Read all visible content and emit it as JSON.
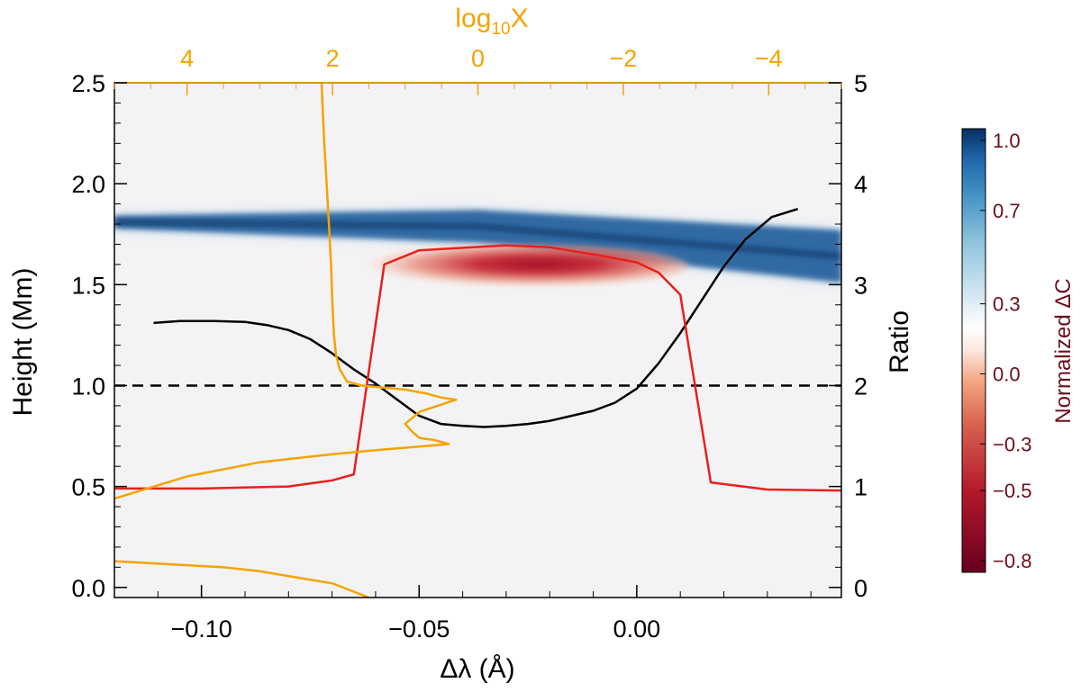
{
  "chart_data": {
    "type": "heatmap",
    "xlabel": "Δλ (Å)",
    "ylabel": "Height (Mm)",
    "y2label": "Ratio",
    "top_axis": {
      "label_main": "log",
      "label_sub": "10",
      "label_end": "X",
      "ticks": [
        "4",
        "2",
        "0",
        "−2",
        "−4"
      ],
      "tick_values": [
        4,
        2,
        0,
        -2,
        -4
      ],
      "range": [
        5.0,
        -5.0
      ]
    },
    "xlim": [
      -0.12,
      0.047
    ],
    "ylim": [
      -0.05,
      2.5
    ],
    "y2lim": [
      -0.1,
      5.0
    ],
    "x_ticks": {
      "values": [
        -0.1,
        -0.05,
        0.0
      ],
      "labels": [
        "−0.10",
        "−0.05",
        "0.00"
      ]
    },
    "y_ticks": {
      "values": [
        0.0,
        0.5,
        1.0,
        1.5,
        2.0,
        2.5
      ],
      "labels": [
        "0.0",
        "0.5",
        "1.0",
        "1.5",
        "2.0",
        "2.5"
      ]
    },
    "y2_ticks": {
      "values": [
        0,
        1,
        2,
        3,
        4,
        5
      ],
      "labels": [
        "0",
        "1",
        "2",
        "3",
        "4",
        "5"
      ]
    },
    "colorbar": {
      "title": "Normalized ΔC",
      "range": [
        -0.85,
        1.05
      ],
      "tick_values": [
        1.0,
        0.7,
        0.3,
        0.0,
        -0.3,
        -0.5,
        -0.8
      ],
      "tick_labels": [
        "1.0",
        "0.7",
        "0.3",
        "0.0",
        "−0.3",
        "−0.5",
        "−0.8"
      ]
    },
    "reference_line": {
      "y": 1.0,
      "style": "dashed",
      "color": "#000000"
    },
    "heatmap_features": {
      "positive_band": {
        "description_value": "Blue band",
        "x_start": -0.12,
        "x_end": 0.047,
        "height_start": 1.81,
        "height_end": 1.64,
        "intensity": 1.0
      },
      "negative_region": {
        "x_range": [
          -0.065,
          0.012
        ],
        "height_range": [
          1.48,
          1.7
        ],
        "peak_x": -0.027,
        "peak_height": 1.62,
        "intensity": -0.85
      }
    },
    "series": [
      {
        "color": "#000000",
        "axis": "ratio",
        "x": [
          -0.111,
          -0.105,
          -0.097,
          -0.09,
          -0.085,
          -0.08,
          -0.075,
          -0.07,
          -0.065,
          -0.06,
          -0.055,
          -0.05,
          -0.045,
          -0.04,
          -0.035,
          -0.03,
          -0.025,
          -0.02,
          -0.015,
          -0.01,
          -0.005,
          0.0,
          0.005,
          0.01,
          0.015,
          0.02,
          0.025,
          0.031,
          0.037
        ],
        "y": [
          2.62,
          2.64,
          2.64,
          2.63,
          2.6,
          2.55,
          2.46,
          2.32,
          2.16,
          2.02,
          1.86,
          1.7,
          1.62,
          1.6,
          1.59,
          1.6,
          1.62,
          1.65,
          1.7,
          1.75,
          1.83,
          1.97,
          2.22,
          2.52,
          2.85,
          3.18,
          3.45,
          3.67,
          3.75
        ]
      },
      {
        "color": "#e8201c",
        "axis": "ratio",
        "x": [
          -0.12,
          -0.1,
          -0.08,
          -0.07,
          -0.065,
          -0.058,
          -0.05,
          -0.03,
          -0.02,
          -0.01,
          0.0,
          0.005,
          0.01,
          0.017,
          0.03,
          0.047
        ],
        "y": [
          0.98,
          0.98,
          1.0,
          1.06,
          1.12,
          3.2,
          3.34,
          3.39,
          3.37,
          3.3,
          3.22,
          3.12,
          2.9,
          1.04,
          0.97,
          0.96
        ]
      },
      {
        "color": "#f5a300",
        "axis": "log10X",
        "x": [
          2.15,
          2.12,
          2.08,
          2.05,
          2.02,
          2.0,
          1.98,
          1.95,
          1.9,
          1.8,
          1.6,
          1.3,
          1.0,
          0.7,
          0.5,
          0.3,
          0.8,
          1.0,
          0.9,
          0.8,
          0.6,
          0.4,
          1.4,
          2.0,
          3.0,
          4.0,
          5.0
        ],
        "y": [
          2.5,
          2.25,
          2.0,
          1.8,
          1.6,
          1.4,
          1.25,
          1.15,
          1.08,
          1.02,
          1.0,
          0.99,
          0.98,
          0.96,
          0.94,
          0.93,
          0.87,
          0.81,
          0.77,
          0.74,
          0.73,
          0.71,
          0.68,
          0.66,
          0.62,
          0.55,
          0.44
        ]
      },
      {
        "color": "#f5a300",
        "axis": "log10X",
        "x": [
          5.0,
          4.5,
          4.0,
          3.5,
          3.0,
          2.5,
          2.0,
          1.5
        ],
        "y": [
          0.13,
          0.12,
          0.11,
          0.1,
          0.08,
          0.05,
          0.02,
          -0.05
        ]
      }
    ]
  }
}
